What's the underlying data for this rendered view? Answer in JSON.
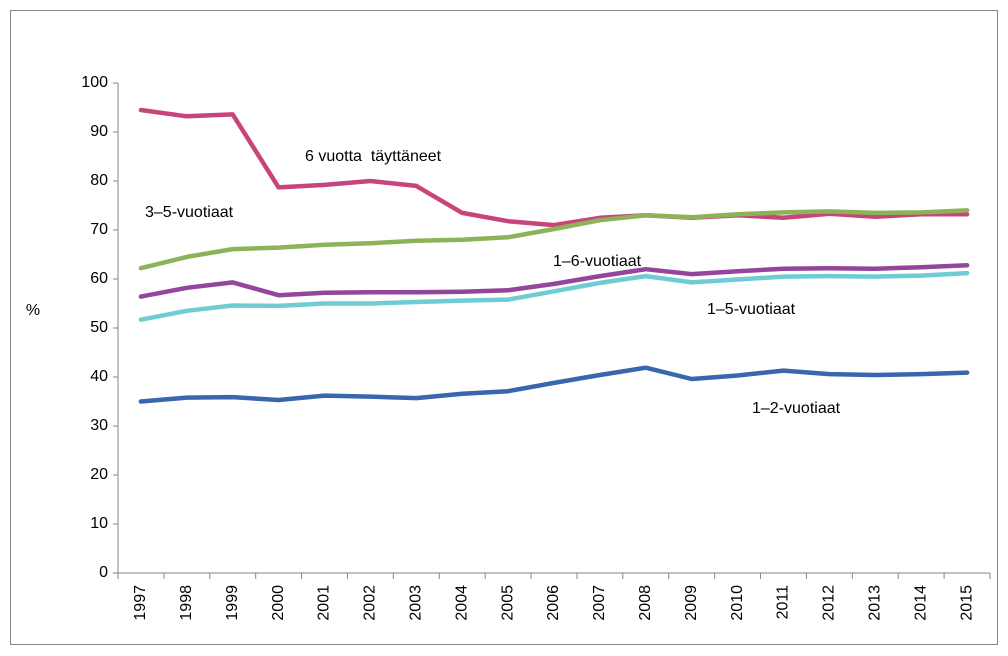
{
  "chart_data": {
    "type": "line",
    "y_label": "%",
    "categories": [
      "1997",
      "1998",
      "1999",
      "2000",
      "2001",
      "2002",
      "2003",
      "2004",
      "2005",
      "2006",
      "2007",
      "2008",
      "2009",
      "2010",
      "2011",
      "2012",
      "2013",
      "2014",
      "2015"
    ],
    "series": [
      {
        "name": "6 vuotta  täyttäneet",
        "color": "#c8457c",
        "values": [
          94.5,
          93.2,
          93.6,
          78.7,
          79.2,
          80,
          79,
          73.5,
          71.8,
          71,
          72.5,
          73,
          72.5,
          73,
          72.5,
          73.3,
          72.7,
          73.2,
          73.2
        ]
      },
      {
        "name": "3–5-vuotiaat",
        "color": "#8db35a",
        "values": [
          62.2,
          64.5,
          66.1,
          66.4,
          67,
          67.3,
          67.8,
          68,
          68.5,
          70.2,
          72,
          73,
          72.6,
          73.2,
          73.6,
          73.8,
          73.5,
          73.6,
          74
        ]
      },
      {
        "name": "1–6-vuotiaat",
        "color": "#94459c",
        "values": [
          56.4,
          58.2,
          59.3,
          56.7,
          57.2,
          57.3,
          57.3,
          57.4,
          57.7,
          59,
          60.6,
          62,
          61,
          61.6,
          62.1,
          62.2,
          62.1,
          62.4,
          62.8
        ]
      },
      {
        "name": "1–5-vuotiaat",
        "color": "#6fccd4",
        "values": [
          51.7,
          53.5,
          54.6,
          54.5,
          55,
          55,
          55.3,
          55.6,
          55.8,
          57.5,
          59.2,
          60.6,
          59.3,
          59.9,
          60.5,
          60.6,
          60.5,
          60.7,
          61.2
        ]
      },
      {
        "name": "1–2-vuotiaat",
        "color": "#3a66ae",
        "values": [
          35,
          35.8,
          35.9,
          35.3,
          36.2,
          36,
          35.7,
          36.6,
          37.1,
          38.8,
          40.4,
          41.9,
          39.6,
          40.3,
          41.3,
          40.6,
          40.4,
          40.6,
          40.9
        ]
      }
    ],
    "ylim": [
      0,
      100
    ],
    "yticks": [
      0,
      10,
      20,
      30,
      40,
      50,
      60,
      70,
      80,
      90,
      100
    ],
    "grid": false
  }
}
